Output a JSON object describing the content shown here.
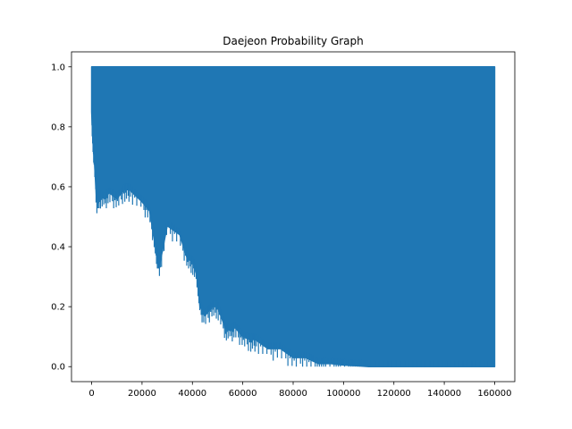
{
  "chart_data": {
    "type": "line",
    "title": "Daejeon Probability Graph",
    "xlabel": "",
    "ylabel": "",
    "xlim": [
      -8000,
      168000
    ],
    "ylim": [
      -0.05,
      1.05
    ],
    "x_ticks": [
      0,
      20000,
      40000,
      60000,
      80000,
      100000,
      120000,
      140000,
      160000
    ],
    "x_tick_labels": [
      "0",
      "20000",
      "40000",
      "60000",
      "80000",
      "100000",
      "120000",
      "140000",
      "160000"
    ],
    "y_ticks": [
      0.0,
      0.2,
      0.4,
      0.6,
      0.8,
      1.0
    ],
    "y_tick_labels": [
      "0.0",
      "0.2",
      "0.4",
      "0.6",
      "0.8",
      "1.0"
    ],
    "grid": false,
    "legend": "none",
    "series": [
      {
        "color": "#1f77b4",
        "x_range": [
          0,
          160000
        ],
        "upper_envelope": 1.0,
        "lower_envelope_x": [
          0,
          500,
          1000,
          2000,
          3000,
          5000,
          7000,
          10000,
          13000,
          15000,
          20000,
          23000,
          25000,
          26000,
          27000,
          30000,
          35000,
          38000,
          40000,
          42000,
          43000,
          45000,
          48000,
          50000,
          53000,
          55000,
          57000,
          60000,
          63000,
          65000,
          70000,
          75000,
          80000,
          85000,
          90000,
          95000,
          100000,
          105000,
          110000,
          120000,
          130000,
          140000,
          150000,
          160000
        ],
        "lower_envelope_y": [
          0.85,
          0.75,
          0.7,
          0.55,
          0.57,
          0.56,
          0.58,
          0.56,
          0.59,
          0.59,
          0.55,
          0.52,
          0.42,
          0.37,
          0.34,
          0.47,
          0.44,
          0.36,
          0.35,
          0.3,
          0.2,
          0.17,
          0.2,
          0.2,
          0.13,
          0.12,
          0.13,
          0.1,
          0.09,
          0.09,
          0.06,
          0.06,
          0.03,
          0.03,
          0.01,
          0.01,
          0.005,
          0.003,
          0.0,
          0.0,
          0.0,
          0.0,
          0.0,
          0.0
        ]
      }
    ]
  }
}
